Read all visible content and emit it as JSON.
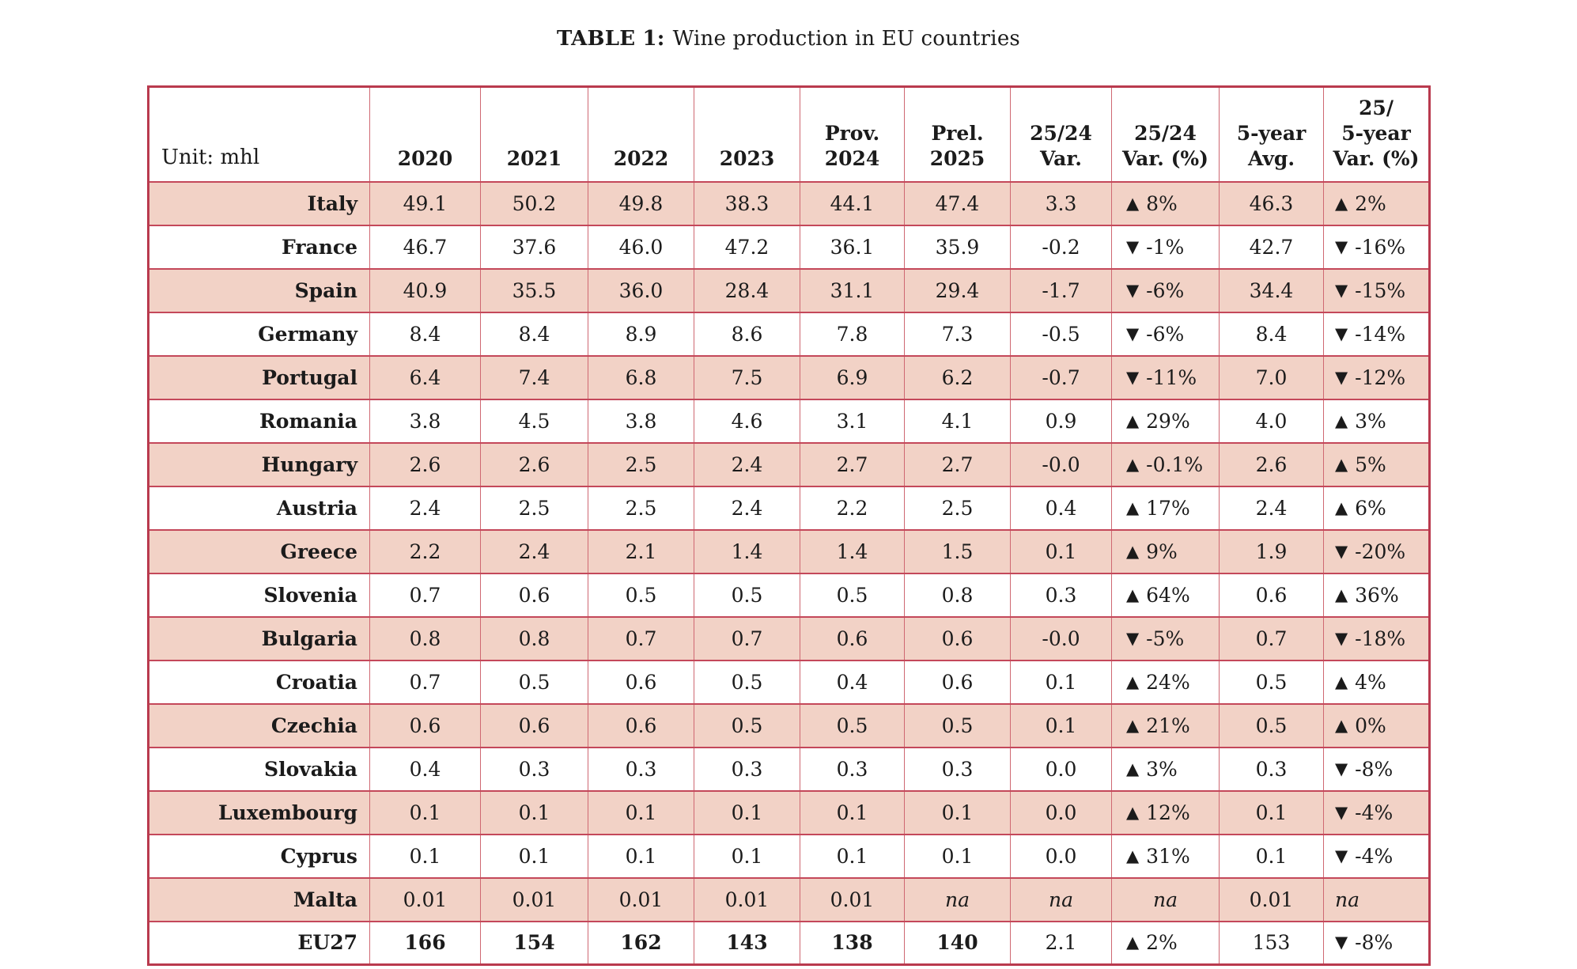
{
  "page": {
    "title_label": "TABLE 1:",
    "title_text": "Wine production in EU countries"
  },
  "icons": {
    "up": "▲",
    "down": "▼"
  },
  "table": {
    "unit_label": "Unit: mhl",
    "columns": [
      "2020",
      "2021",
      "2022",
      "2023",
      "Prov.\n2024",
      "Prel.\n2025",
      "25/24\nVar.",
      "25/24\nVar. (%)",
      "5-year\nAvg.",
      "25/\n5-year\nVar. (%)"
    ],
    "rows": [
      {
        "country": "Italy",
        "values": [
          "49.1",
          "50.2",
          "49.8",
          "38.3",
          "44.1",
          "47.4",
          "3.3"
        ],
        "var_pct": {
          "arrow": "up",
          "value": "8%"
        },
        "avg": "46.3",
        "var5_pct": {
          "arrow": "up",
          "value": "2%"
        }
      },
      {
        "country": "France",
        "values": [
          "46.7",
          "37.6",
          "46.0",
          "47.2",
          "36.1",
          "35.9",
          "-0.2"
        ],
        "var_pct": {
          "arrow": "down",
          "value": "-1%"
        },
        "avg": "42.7",
        "var5_pct": {
          "arrow": "down",
          "value": "-16%"
        }
      },
      {
        "country": "Spain",
        "values": [
          "40.9",
          "35.5",
          "36.0",
          "28.4",
          "31.1",
          "29.4",
          "-1.7"
        ],
        "var_pct": {
          "arrow": "down",
          "value": "-6%"
        },
        "avg": "34.4",
        "var5_pct": {
          "arrow": "down",
          "value": "-15%"
        }
      },
      {
        "country": "Germany",
        "values": [
          "8.4",
          "8.4",
          "8.9",
          "8.6",
          "7.8",
          "7.3",
          "-0.5"
        ],
        "var_pct": {
          "arrow": "down",
          "value": "-6%"
        },
        "avg": "8.4",
        "var5_pct": {
          "arrow": "down",
          "value": "-14%"
        }
      },
      {
        "country": "Portugal",
        "values": [
          "6.4",
          "7.4",
          "6.8",
          "7.5",
          "6.9",
          "6.2",
          "-0.7"
        ],
        "var_pct": {
          "arrow": "down",
          "value": "-11%"
        },
        "avg": "7.0",
        "var5_pct": {
          "arrow": "down",
          "value": "-12%"
        }
      },
      {
        "country": "Romania",
        "values": [
          "3.8",
          "4.5",
          "3.8",
          "4.6",
          "3.1",
          "4.1",
          "0.9"
        ],
        "var_pct": {
          "arrow": "up",
          "value": "29%"
        },
        "avg": "4.0",
        "var5_pct": {
          "arrow": "up",
          "value": "3%"
        }
      },
      {
        "country": "Hungary",
        "values": [
          "2.6",
          "2.6",
          "2.5",
          "2.4",
          "2.7",
          "2.7",
          "-0.0"
        ],
        "var_pct": {
          "arrow": "up",
          "value": "-0.1%"
        },
        "avg": "2.6",
        "var5_pct": {
          "arrow": "up",
          "value": "5%"
        }
      },
      {
        "country": "Austria",
        "values": [
          "2.4",
          "2.5",
          "2.5",
          "2.4",
          "2.2",
          "2.5",
          "0.4"
        ],
        "var_pct": {
          "arrow": "up",
          "value": "17%"
        },
        "avg": "2.4",
        "var5_pct": {
          "arrow": "up",
          "value": "6%"
        }
      },
      {
        "country": "Greece",
        "values": [
          "2.2",
          "2.4",
          "2.1",
          "1.4",
          "1.4",
          "1.5",
          "0.1"
        ],
        "var_pct": {
          "arrow": "up",
          "value": "9%"
        },
        "avg": "1.9",
        "var5_pct": {
          "arrow": "down",
          "value": "-20%"
        }
      },
      {
        "country": "Slovenia",
        "values": [
          "0.7",
          "0.6",
          "0.5",
          "0.5",
          "0.5",
          "0.8",
          "0.3"
        ],
        "var_pct": {
          "arrow": "up",
          "value": "64%"
        },
        "avg": "0.6",
        "var5_pct": {
          "arrow": "up",
          "value": "36%"
        }
      },
      {
        "country": "Bulgaria",
        "values": [
          "0.8",
          "0.8",
          "0.7",
          "0.7",
          "0.6",
          "0.6",
          "-0.0"
        ],
        "var_pct": {
          "arrow": "down",
          "value": "-5%"
        },
        "avg": "0.7",
        "var5_pct": {
          "arrow": "down",
          "value": "-18%"
        }
      },
      {
        "country": "Croatia",
        "values": [
          "0.7",
          "0.5",
          "0.6",
          "0.5",
          "0.4",
          "0.6",
          "0.1"
        ],
        "var_pct": {
          "arrow": "up",
          "value": "24%"
        },
        "avg": "0.5",
        "var5_pct": {
          "arrow": "up",
          "value": "4%"
        }
      },
      {
        "country": "Czechia",
        "values": [
          "0.6",
          "0.6",
          "0.6",
          "0.5",
          "0.5",
          "0.5",
          "0.1"
        ],
        "var_pct": {
          "arrow": "up",
          "value": "21%"
        },
        "avg": "0.5",
        "var5_pct": {
          "arrow": "up",
          "value": "0%"
        }
      },
      {
        "country": "Slovakia",
        "values": [
          "0.4",
          "0.3",
          "0.3",
          "0.3",
          "0.3",
          "0.3",
          "0.0"
        ],
        "var_pct": {
          "arrow": "up",
          "value": "3%"
        },
        "avg": "0.3",
        "var5_pct": {
          "arrow": "down",
          "value": "-8%"
        }
      },
      {
        "country": "Luxembourg",
        "values": [
          "0.1",
          "0.1",
          "0.1",
          "0.1",
          "0.1",
          "0.1",
          "0.0"
        ],
        "var_pct": {
          "arrow": "up",
          "value": "12%"
        },
        "avg": "0.1",
        "var5_pct": {
          "arrow": "down",
          "value": "-4%"
        }
      },
      {
        "country": "Cyprus",
        "values": [
          "0.1",
          "0.1",
          "0.1",
          "0.1",
          "0.1",
          "0.1",
          "0.0"
        ],
        "var_pct": {
          "arrow": "up",
          "value": "31%"
        },
        "avg": "0.1",
        "var5_pct": {
          "arrow": "down",
          "value": "-4%"
        }
      },
      {
        "country": "Malta",
        "values": [
          "0.01",
          "0.01",
          "0.01",
          "0.01",
          "0.01",
          "na",
          "na"
        ],
        "var_pct": {
          "arrow": null,
          "value": "na"
        },
        "avg": "0.01",
        "var5_pct": {
          "arrow": null,
          "value": "na"
        }
      },
      {
        "country": "EU27",
        "bold": true,
        "values": [
          "166",
          "154",
          "162",
          "143",
          "138",
          "140",
          "2.1"
        ],
        "var_pct": {
          "arrow": "up",
          "value": "2%"
        },
        "avg": "153",
        "var5_pct": {
          "arrow": "down",
          "value": "-8%"
        }
      }
    ]
  }
}
